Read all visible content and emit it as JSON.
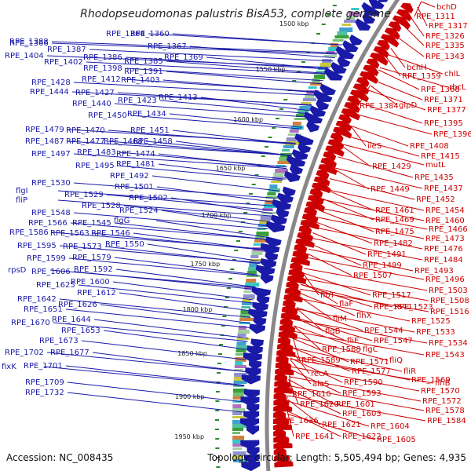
{
  "title": "Rhodopseudomonas palustris BisA53, complete genome",
  "footer": {
    "accession": "Accession: NC_008435",
    "summary": "Topology: circular; Length: 5,505,494 bp; Genes: 4,935"
  },
  "kbp_ticks": [
    "1500 kbp",
    "1550 kbp",
    "1600 kbp",
    "1650 kbp",
    "1700 kbp",
    "1750 kbp",
    "1800 kbp",
    "1850 kbp",
    "1900 kbp",
    "1950 kbp"
  ],
  "left_labels": [
    "RPE_1366",
    "RPE_1364",
    "RPE_1360",
    "RPE_1388",
    "RPE_1367",
    "RPE_1387",
    "RPE_1404",
    "RPE_1386",
    "RPE_1369",
    "RPE_1402",
    "RPE_1385",
    "RPE_1398",
    "RPE_1391",
    "RPE_1412",
    "RPE_1403",
    "RPE_1428",
    "RPE_1427",
    "RPE_1444",
    "RPE_1423",
    "RPE_1413",
    "RPE_1440",
    "RPE_1450",
    "RPE_1434",
    "RPE_1479",
    "RPE_1470",
    "RPE_1451",
    "RPE_1487",
    "RPE_1477",
    "RPE_1468",
    "RPE_1458",
    "RPE_1497",
    "RPE_1483",
    "RPE_1474",
    "RPE_1495",
    "RPE_1481",
    "RPE_1492",
    "flgI",
    "RPE_1530",
    "RPE_1501",
    "RPE_1529",
    "RPE_1502",
    "fliP",
    "RPE_1528",
    "RPE_1524",
    "RPE_1548",
    "RPE_1566",
    "RPE_1545",
    "flgG",
    "RPE_1586",
    "RPE_1563",
    "RPE_1546",
    "RPE_1595",
    "RPE_1573",
    "RPE_1550",
    "RPE_1599",
    "RPE_1579",
    "rpsD",
    "RPE_1606",
    "RPE_1592",
    "RPE_1625",
    "RPE_1600",
    "RPE_1612",
    "RPE_1642",
    "RPE_1651",
    "RPE_1626",
    "RPE_1670",
    "RPE_1644",
    "RPE_1653",
    "RPE_1673",
    "RPE_1702",
    "RPE_1677",
    "fixK",
    "RPE_1701",
    "RPE_1709",
    "RPE_1732"
  ],
  "right_labels": [
    "bchD",
    "RPE_1311",
    "RPE_1317",
    "RPE_1326",
    "RPE_1335",
    "RPE_1343",
    "bchH",
    "chlL",
    "RPE_1359",
    "rbcL",
    "RPE_1368",
    "RPE_1371",
    "RPE_1384",
    "glpD",
    "RPE_1377",
    "RPE_1395",
    "RPE_1396",
    "ileS",
    "RPE_1408",
    "RPE_1415",
    "RPE_1429",
    "mutL",
    "RPE_1435",
    "RPE_1449",
    "RPE_1437",
    "RPE_1452",
    "RPE_1461",
    "RPE_1454",
    "RPE_1469",
    "RPE_1460",
    "RPE_1466",
    "RPE_1475",
    "RPE_1473",
    "RPE_1482",
    "RPE_1476",
    "RPE_1491",
    "RPE_1484",
    "RPE_1499",
    "RPE_1493",
    "RPE_1507",
    "RPE_1496",
    "RPE_1503",
    "flbT",
    "RPE_1517",
    "RPE_1508",
    "flaF",
    "RPE_1511",
    "RPE_1523",
    "RPE_1516",
    "fliM",
    "flhX",
    "RPE_1525",
    "flgB",
    "fliE",
    "RPE_1544",
    "RPE_1533",
    "RPE_1547",
    "RPE_1534",
    "RPE_1568",
    "flgC",
    "RPE_1543",
    "RPE_1589",
    "RPE_1571",
    "fliQ",
    "fliR",
    "recA",
    "RPE_1577",
    "RPE_1569",
    "flhB",
    "alaS",
    "RPE_1590",
    "RPE_1570",
    "RPE_1593",
    "RPE_1572",
    "RPE_1610",
    "RPE_1601",
    "RPE_1578",
    "RPE_1620",
    "RPE_1603",
    "RPE_1584",
    "RPE_1636",
    "RPE_1621",
    "RPE_1604",
    "RPE_1641",
    "RPE_1622",
    "RPE_1605"
  ],
  "colors": {
    "left_genes": "#1a1aa8",
    "right_genes": "#cc0000",
    "backbone": "#888888",
    "tick_marks": "#2a8a2a"
  }
}
